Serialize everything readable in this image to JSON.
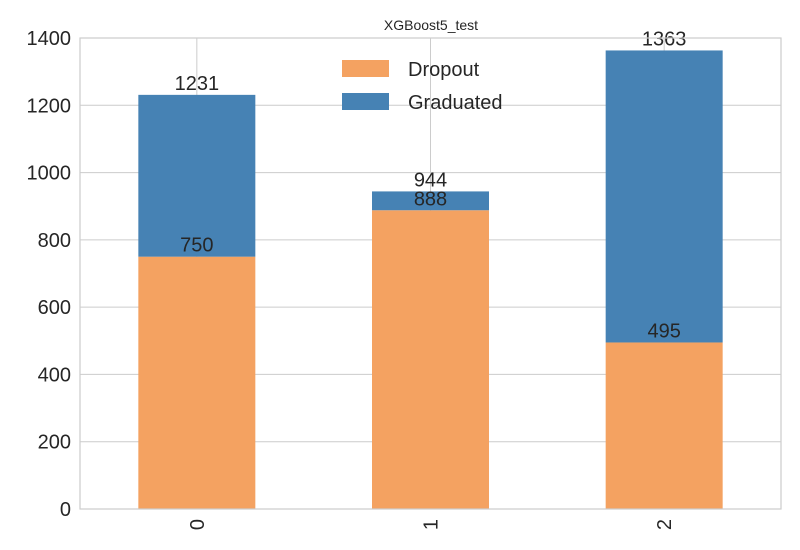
{
  "chart_data": {
    "type": "bar",
    "stacked": true,
    "title": "XGBoost5_test",
    "xlabel": "",
    "ylabel": "",
    "categories": [
      "0",
      "1",
      "2"
    ],
    "series": [
      {
        "name": "Dropout",
        "values": [
          750,
          888,
          495
        ],
        "color": "#f4a261"
      },
      {
        "name": "Graduated",
        "values": [
          481,
          56,
          868
        ],
        "color": "#4682b4"
      }
    ],
    "data_labels": {
      "bottom": [
        "750",
        "888",
        "495"
      ],
      "top": [
        "1231",
        "944",
        "1363"
      ]
    },
    "ylim": [
      0,
      1400
    ],
    "yticks": [
      0,
      200,
      400,
      600,
      800,
      1000,
      1200,
      1400
    ],
    "grid": true,
    "legend_position": "top-center"
  }
}
